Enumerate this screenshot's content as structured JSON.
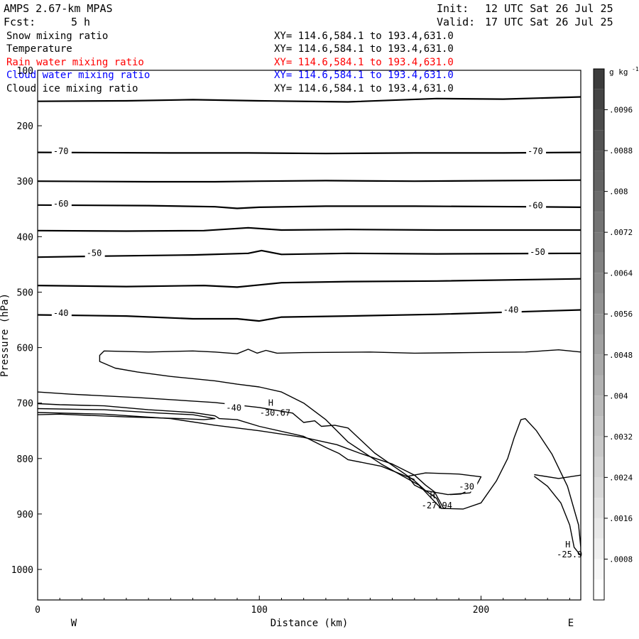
{
  "header": {
    "model": "AMPS 2.67-km MPAS",
    "init_label": "Init:",
    "init_value": "12 UTC Sat 26 Jul 25",
    "fcst_label": "Fcst:",
    "fcst_value": "5 h",
    "valid_label": "Valid:",
    "valid_value": "17 UTC Sat 26 Jul 25"
  },
  "fields": [
    {
      "name": "Snow mixing ratio",
      "xy": "XY= 114.6,584.1 to 193.4,631.0",
      "color": "#000000"
    },
    {
      "name": "Temperature",
      "xy": "XY= 114.6,584.1 to 193.4,631.0",
      "color": "#000000"
    },
    {
      "name": "Rain water mixing ratio",
      "xy": "XY= 114.6,584.1 to 193.4,631.0",
      "color": "#ff0000"
    },
    {
      "name": "Cloud water mixing ratio",
      "xy": "XY= 114.6,584.1 to 193.4,631.0",
      "color": "#0000ff"
    },
    {
      "name": "Cloud ice mixing ratio",
      "xy": "XY= 114.6,584.1 to 193.4,631.0",
      "color": "#000000"
    }
  ],
  "chart_data": {
    "type": "contour",
    "xlabel": "Distance (km)",
    "ylabel": "Pressure (hPa)",
    "xlim": [
      0,
      245
    ],
    "ylim": [
      1055,
      100
    ],
    "x_ticks": [
      0,
      100,
      200
    ],
    "y_ticks": [
      100,
      200,
      300,
      400,
      500,
      600,
      700,
      800,
      900,
      1000
    ],
    "x_end_labels": {
      "left": "W",
      "right": "E"
    },
    "isotherms": [
      {
        "points": [
          [
            0,
            156
          ],
          [
            40,
            155
          ],
          [
            70,
            153
          ],
          [
            100,
            155
          ],
          [
            140,
            157
          ],
          [
            180,
            151
          ],
          [
            210,
            152
          ],
          [
            245,
            148
          ]
        ]
      },
      {
        "points": [
          [
            0,
            248
          ],
          [
            60,
            249
          ],
          [
            95,
            249
          ],
          [
            130,
            250
          ],
          [
            170,
            249
          ],
          [
            210,
            249
          ],
          [
            245,
            248
          ]
        ]
      },
      {
        "points": [
          [
            0,
            300
          ],
          [
            50,
            301
          ],
          [
            80,
            301
          ],
          [
            100,
            300
          ],
          [
            130,
            299
          ],
          [
            170,
            300
          ],
          [
            210,
            299
          ],
          [
            245,
            298
          ]
        ]
      },
      {
        "points": [
          [
            0,
            343
          ],
          [
            50,
            344
          ],
          [
            80,
            346
          ],
          [
            90,
            349
          ],
          [
            100,
            347
          ],
          [
            130,
            345
          ],
          [
            170,
            345
          ],
          [
            220,
            346
          ],
          [
            245,
            347
          ]
        ]
      },
      {
        "points": [
          [
            0,
            389
          ],
          [
            40,
            390
          ],
          [
            75,
            389
          ],
          [
            95,
            384
          ],
          [
            110,
            388
          ],
          [
            140,
            387
          ],
          [
            180,
            388
          ],
          [
            245,
            388
          ]
        ]
      },
      {
        "points": [
          [
            0,
            437
          ],
          [
            30,
            435
          ],
          [
            70,
            433
          ],
          [
            95,
            430
          ],
          [
            101,
            425
          ],
          [
            110,
            432
          ],
          [
            140,
            430
          ],
          [
            180,
            431
          ],
          [
            245,
            430
          ]
        ]
      },
      {
        "points": [
          [
            0,
            488
          ],
          [
            40,
            490
          ],
          [
            75,
            488
          ],
          [
            90,
            491
          ],
          [
            100,
            487
          ],
          [
            110,
            483
          ],
          [
            140,
            481
          ],
          [
            180,
            480
          ],
          [
            245,
            476
          ]
        ]
      },
      {
        "points": [
          [
            0,
            541
          ],
          [
            40,
            543
          ],
          [
            70,
            548
          ],
          [
            90,
            548
          ],
          [
            100,
            552
          ],
          [
            110,
            545
          ],
          [
            140,
            543
          ],
          [
            180,
            540
          ],
          [
            245,
            532
          ]
        ]
      }
    ],
    "isotherm_labels": [
      {
        "text": "-70",
        "x": 7,
        "p": 251
      },
      {
        "text": "-70",
        "x": 221,
        "p": 251
      },
      {
        "text": "-60",
        "x": 7,
        "p": 346
      },
      {
        "text": "-60",
        "x": 221,
        "p": 349
      },
      {
        "text": "-50",
        "x": 22,
        "p": 435
      },
      {
        "text": "-50",
        "x": 222,
        "p": 433
      },
      {
        "text": "-40",
        "x": 7,
        "p": 543
      },
      {
        "text": "-40",
        "x": 210,
        "p": 537
      },
      {
        "text": "-40",
        "x": 85,
        "p": 714
      },
      {
        "text": "-30",
        "x": 190,
        "p": 856
      }
    ],
    "cloud_contours": [
      {
        "points": [
          [
            245,
            608
          ],
          [
            235,
            604
          ],
          [
            220,
            608
          ],
          [
            195,
            609
          ],
          [
            170,
            610
          ],
          [
            150,
            608
          ],
          [
            120,
            609
          ],
          [
            108,
            610
          ],
          [
            103,
            605
          ],
          [
            99,
            610
          ],
          [
            95,
            603
          ],
          [
            90,
            611
          ],
          [
            80,
            608
          ],
          [
            70,
            606
          ],
          [
            50,
            608
          ],
          [
            30,
            606
          ],
          [
            28,
            614
          ],
          [
            28,
            625
          ],
          [
            35,
            637
          ],
          [
            45,
            644
          ],
          [
            60,
            652
          ],
          [
            80,
            660
          ],
          [
            90,
            666
          ],
          [
            100,
            671
          ],
          [
            110,
            680
          ],
          [
            120,
            700
          ],
          [
            130,
            730
          ],
          [
            140,
            770
          ],
          [
            155,
            810
          ],
          [
            172,
            848
          ],
          [
            182,
            890
          ],
          [
            192,
            891
          ],
          [
            200,
            880
          ],
          [
            207,
            840
          ],
          [
            212,
            800
          ],
          [
            215,
            762
          ],
          [
            218,
            730
          ],
          [
            220,
            728
          ],
          [
            225,
            750
          ],
          [
            232,
            792
          ],
          [
            239,
            850
          ],
          [
            244,
            920
          ],
          [
            245,
            960
          ],
          [
            245,
            977
          ]
        ]
      },
      {
        "points": [
          [
            0,
            680
          ],
          [
            15,
            684
          ],
          [
            45,
            690
          ],
          [
            80,
            699
          ],
          [
            100,
            708
          ],
          [
            115,
            718
          ],
          [
            120,
            735
          ],
          [
            125,
            732
          ],
          [
            128,
            742
          ],
          [
            134,
            740
          ],
          [
            140,
            745
          ],
          [
            152,
            790
          ],
          [
            170,
            840
          ],
          [
            175,
            858
          ],
          [
            180,
            872
          ],
          [
            182,
            889
          ]
        ]
      },
      {
        "points": [
          [
            0,
            701
          ],
          [
            10,
            703
          ],
          [
            30,
            705
          ],
          [
            50,
            712
          ],
          [
            70,
            717
          ],
          [
            80,
            723
          ],
          [
            82,
            728
          ],
          [
            90,
            730
          ],
          [
            100,
            742
          ],
          [
            120,
            760
          ],
          [
            130,
            780
          ],
          [
            136,
            791
          ],
          [
            140,
            802
          ],
          [
            155,
            814
          ],
          [
            170,
            838
          ]
        ]
      },
      {
        "points": [
          [
            0,
            710
          ],
          [
            30,
            712
          ],
          [
            55,
            718
          ],
          [
            70,
            721
          ],
          [
            80,
            728
          ],
          [
            75,
            730
          ],
          [
            65,
            728
          ],
          [
            40,
            725
          ],
          [
            10,
            720
          ],
          [
            0,
            721
          ]
        ]
      },
      {
        "points": [
          [
            0,
            717
          ],
          [
            30,
            720
          ],
          [
            60,
            728
          ],
          [
            80,
            740
          ],
          [
            100,
            750
          ],
          [
            120,
            762
          ],
          [
            135,
            775
          ],
          [
            145,
            790
          ],
          [
            160,
            810
          ],
          [
            170,
            830
          ],
          [
            175,
            848
          ],
          [
            179,
            860
          ],
          [
            183,
            889
          ]
        ]
      },
      {
        "points": [
          [
            167,
            832
          ],
          [
            175,
            826
          ],
          [
            190,
            828
          ],
          [
            200,
            833
          ],
          [
            198,
            848
          ],
          [
            195,
            862
          ],
          [
            185,
            865
          ],
          [
            175,
            858
          ],
          [
            170,
            848
          ],
          [
            167,
            832
          ]
        ]
      },
      {
        "points": [
          [
            224,
            829
          ],
          [
            235,
            836
          ],
          [
            245,
            830
          ]
        ]
      },
      {
        "points": [
          [
            224,
            832
          ],
          [
            230,
            850
          ],
          [
            236,
            880
          ],
          [
            240,
            920
          ],
          [
            242,
            960
          ],
          [
            245,
            975
          ]
        ]
      },
      {
        "points": [
          [
            186,
            865
          ],
          [
            191,
            864
          ],
          [
            193,
            860
          ]
        ]
      }
    ],
    "highs": [
      {
        "symbol": "H",
        "value": "-30.67",
        "x": 104,
        "p": 705
      },
      {
        "symbol": "H",
        "value": "-27.94",
        "x": 177,
        "p": 872
      },
      {
        "symbol": "H",
        "value": "-25.9",
        "x": 238,
        "p": 960
      }
    ],
    "colorbar": {
      "unit": "g kg",
      "unit_exp": "-1",
      "min": 0,
      "max": 0.0104,
      "step": 0.0004,
      "tick_labels": [
        ".0008",
        ".0016",
        ".0024",
        ".0032",
        ".004",
        ".0048",
        ".0056",
        ".0064",
        ".0072",
        ".008",
        ".0088",
        ".0096"
      ]
    }
  }
}
